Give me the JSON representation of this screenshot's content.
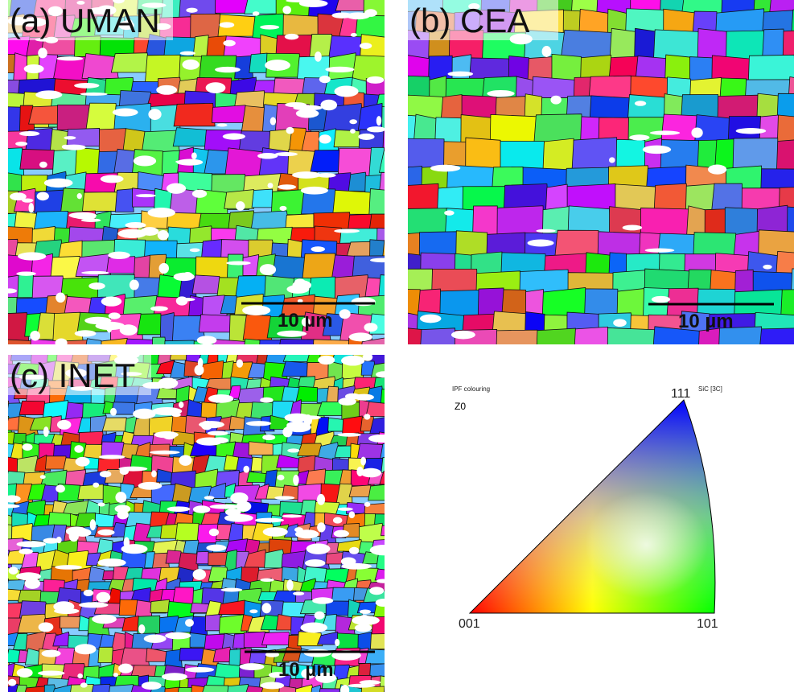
{
  "panels": [
    {
      "label": "(a) UMAN",
      "scale_bar": "10 µm"
    },
    {
      "label": "(b) CEA",
      "scale_bar": "10 µm"
    },
    {
      "label": "(c) INET",
      "scale_bar": "10 µm"
    }
  ],
  "legend": {
    "title": "IPF colouring",
    "phase": "SiC [3C]",
    "direction": "Z0",
    "vertices": {
      "top": "111",
      "left": "001",
      "right": "101"
    }
  }
}
